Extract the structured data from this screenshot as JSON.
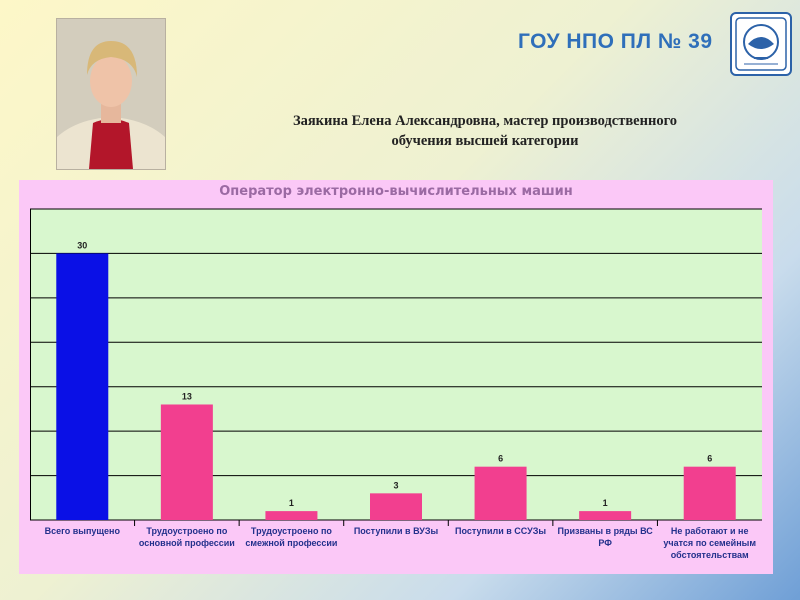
{
  "header": {
    "school_title": "ГОУ НПО ПЛ № 39",
    "caption_line1": "Заякина Елена Александровна,  мастер производственного",
    "caption_line2": "обучения высшей категории"
  },
  "colors": {
    "first_bar": "#0a10e6",
    "other_bars": "#f23f8f",
    "plot_bg": "#d8f7ce",
    "panel_bg": "#fbc8f7"
  },
  "chart_data": {
    "type": "bar",
    "title": "Оператор электронно-вычислительных машин",
    "categories": [
      [
        "Всего выпущено"
      ],
      [
        "Трудоустроено по",
        "основной профессии"
      ],
      [
        "Трудоустроено по",
        "смежной профессии"
      ],
      [
        "Поступили в ВУЗы"
      ],
      [
        "Поступили в ССУЗы"
      ],
      [
        "Призваны в ряды ВС",
        "РФ"
      ],
      [
        "Не работают и не",
        "учатся по семейным",
        "обстоятельствам"
      ]
    ],
    "values": [
      30,
      13,
      1,
      3,
      6,
      1,
      6
    ],
    "ylim": [
      0,
      35
    ],
    "grid": true,
    "xlabel": "",
    "ylabel": ""
  }
}
